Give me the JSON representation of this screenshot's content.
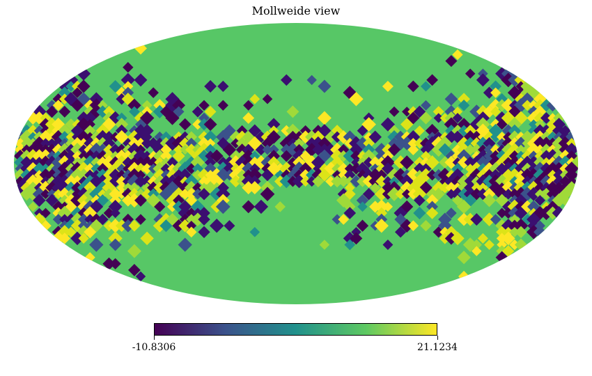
{
  "title": "Mollweide view",
  "projection": "mollweide",
  "map_data": {
    "background_value_color": "#57c766",
    "features": "healpix pixel mosaic; high-variance band along the central latitude and scattered patches at high longitudes; smooth near-background values toward the poles"
  },
  "colorbar": {
    "colormap": "viridis",
    "min_label": "-10.8306",
    "max_label": "21.1234",
    "min": -10.8306,
    "max": 21.1234,
    "stops": [
      "#440154",
      "#3b528b",
      "#21918c",
      "#5ec962",
      "#fde725"
    ]
  }
}
